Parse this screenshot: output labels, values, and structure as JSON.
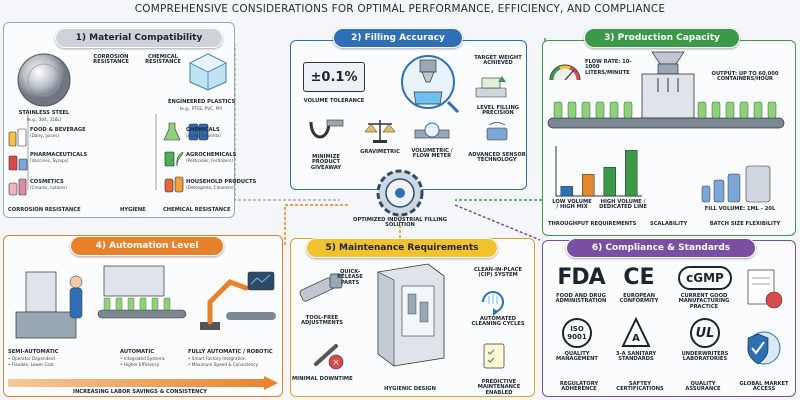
{
  "title": "Comprehensive Considerations for Optimal Performance, Efficiency, and Compliance",
  "center": {
    "label": "Optimized Industrial Filling Solution"
  },
  "sections": {
    "material": {
      "heading": "1) Material Compatibility",
      "color": "#c9ccd1",
      "steel": {
        "title": "Stainless Steel",
        "sub": "(e.g., 304, 316L)"
      },
      "corrosion_label": "Corrosion Resistance",
      "chemical_label": "Chemical Resistance",
      "plastics": {
        "title": "Engineered Plastics",
        "sub": "(e.g., PTFE, PVC, PP)"
      },
      "food": {
        "title": "Food & Beverage",
        "sub": "(Dairy, Juices)"
      },
      "pharma": {
        "title": "Pharmaceuticals",
        "sub": "(Vaccines, Syrups)"
      },
      "cosmetics": {
        "title": "Cosmetics",
        "sub": "(Creams, Lotions)"
      },
      "chemicals": {
        "title": "Chemicals",
        "sub": "(Acids, Solvents)"
      },
      "agro": {
        "title": "Agrochemicals",
        "sub": "(Pesticides, Fertilizers)"
      },
      "household": {
        "title": "Household Products",
        "sub": "(Detergents, Cleaners)"
      },
      "footer": [
        "Corrosion Resistance",
        "Hygiene",
        "Chemical Resistance"
      ]
    },
    "filling": {
      "heading": "2) Filling Accuracy",
      "color": "#2f6fb5",
      "tolerance_value": "±0.1%",
      "tolerance_label": "Volume Tolerance",
      "target_label": "Target Weight Achieved",
      "level_label": "Level Filling Precision",
      "giveaway_label": "Minimize Product Giveaway",
      "gravimetric_label": "Gravimetric",
      "flowmeter_label": "Volumetric / Flow Meter",
      "sensor_label": "Advanced Sensor Technology"
    },
    "capacity": {
      "heading": "3) Production Capacity",
      "color": "#3a9a4a",
      "flow_rate": "Flow Rate: 10-1000 Liters/Minute",
      "output": "Output: Up to 60,000 Containers/Hour",
      "low_volume": "Low Volume / High Mix",
      "high_volume": "High Volume / Dedicated Line",
      "throughput_label": "Throughput Requirements",
      "scalability_label": "Scalability",
      "fill_volume": "Fill Volume: 1mL - 20L",
      "batch_label": "Batch Size Flexibility",
      "chart_data": {
        "type": "bar",
        "categories": [
          "",
          "",
          "",
          ""
        ],
        "values": [
          20,
          45,
          60,
          95
        ],
        "ylim": [
          0,
          100
        ],
        "colors": [
          "#2f6fb5",
          "#e08a2a",
          "#3a9a4a",
          "#3a9a4a"
        ]
      }
    },
    "automation": {
      "heading": "4) Automation Level",
      "color": "#e8822a",
      "semi": {
        "title": "Semi-Automatic",
        "lines": [
          "• Operator Dependent",
          "• Flexible, Lower Cost"
        ]
      },
      "auto": {
        "title": "Automatic",
        "lines": [
          "• Integrated Systems",
          "• Higher Efficiency"
        ]
      },
      "full": {
        "title": "Fully Automatic / Robotic",
        "lines": [
          "• Smart Factory Integration",
          "• Maximum Speed & Consistency"
        ]
      },
      "arrow_label": "Increasing Labor Savings & Consistency"
    },
    "maintenance": {
      "heading": "5) Maintenance Requirements",
      "color": "#f2c12e",
      "quick_release": "Quick-Release Parts",
      "tool_free": "Tool-Free Adjustments",
      "cip": "Clean-in-Place (CIP) System",
      "cleaning": "Automated Cleaning Cycles",
      "downtime": "Minimal Downtime",
      "hygienic": "Hygienic Design",
      "predictive": "Predictive Maintenance Enabled"
    },
    "compliance": {
      "heading": "6) Compliance & Standards",
      "color": "#7a4fa3",
      "fda": {
        "logo": "FDA",
        "label": "Food and Drug Administration"
      },
      "ce": {
        "logo": "CE",
        "label": "European Conformity"
      },
      "cgmp": {
        "logo": "cGMP",
        "label": "Current Good Manufacturing Practice"
      },
      "iso": {
        "logo": "ISO",
        "logo_num": "9001",
        "label": "Quality Management"
      },
      "a3": {
        "logo": "3-A",
        "label": "3-A Sanitary Standards"
      },
      "ul": {
        "logo": "UL",
        "label": "Underwriters Laboratories"
      },
      "bottom": [
        "Regulatory Adherence",
        "Saftey Certifications",
        "Quality Assurance",
        "Global Market Access"
      ]
    }
  }
}
